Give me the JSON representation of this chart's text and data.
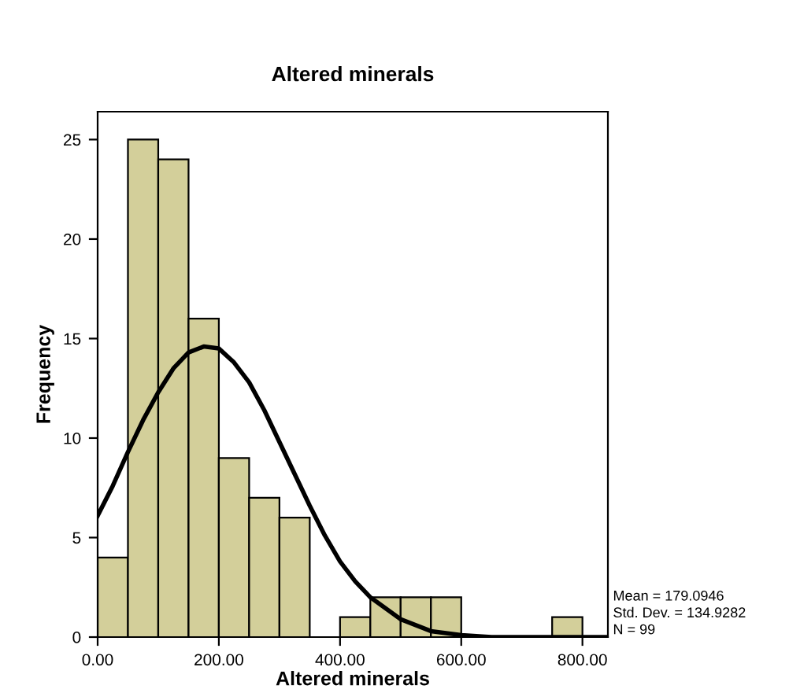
{
  "chart_data": {
    "type": "histogram",
    "title": "Altered minerals",
    "xlabel": "Altered minerals",
    "ylabel": "Frequency",
    "bins": [
      0,
      50,
      100,
      150,
      200,
      250,
      300,
      350,
      400,
      450,
      500,
      550,
      600,
      650,
      700,
      750,
      800
    ],
    "values": [
      4,
      25,
      24,
      16,
      9,
      7,
      6,
      0,
      1,
      2,
      2,
      2,
      0,
      0,
      0,
      1
    ],
    "color": "#d3cf9a",
    "series": [
      {
        "type": "line",
        "color": "#000000",
        "x": [
          0,
          25,
          50,
          75,
          100,
          125,
          150,
          175,
          200,
          225,
          250,
          275,
          300,
          325,
          350,
          375,
          400,
          425,
          450,
          500,
          550,
          600,
          650,
          700,
          800,
          842
        ],
        "values": [
          6.1,
          7.6,
          9.3,
          10.9,
          12.3,
          13.5,
          14.3,
          14.6,
          14.5,
          13.8,
          12.8,
          11.4,
          9.8,
          8.2,
          6.6,
          5.1,
          3.8,
          2.8,
          2.0,
          0.9,
          0.3,
          0.1,
          0.0,
          0.0,
          0.0,
          0.0
        ]
      }
    ],
    "xlim": [
      0,
      842
    ],
    "ylim": [
      0,
      26.4
    ],
    "xticks": [
      {
        "value": 0,
        "label": "0.00"
      },
      {
        "value": 200,
        "label": "200.00"
      },
      {
        "value": 400,
        "label": "400.00"
      },
      {
        "value": 600,
        "label": "600.00"
      },
      {
        "value": 800,
        "label": "800.00"
      }
    ],
    "yticks": [
      0,
      5,
      10,
      15,
      20,
      25
    ],
    "grid": false,
    "legend": false,
    "annotations": [
      "Mean = 179.0946",
      "Std. Dev. = 134.9282",
      "N = 99"
    ]
  }
}
